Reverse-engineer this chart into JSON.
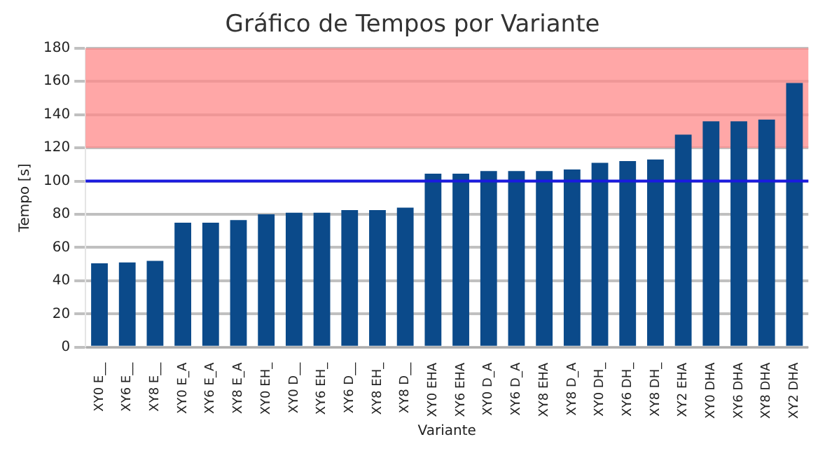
{
  "chart_data": {
    "type": "bar",
    "title": "Gráfico de Tempos por Variante",
    "xlabel": "Variante",
    "ylabel": "Tempo [s]",
    "categories": [
      "XY0 E__",
      "XY6 E__",
      "XY8 E__",
      "XY0 E_A",
      "XY6 E_A",
      "XY8 E_A",
      "XY0 EH_",
      "XY0 D__",
      "XY6 EH_",
      "XY6 D__",
      "XY8 EH_",
      "XY8 D__",
      "XY0 EHA",
      "XY6 EHA",
      "XY0 D_A",
      "XY6 D_A",
      "XY8 EHA",
      "XY8 D_A",
      "XY0 DH_",
      "XY6 DH_",
      "XY8 DH_",
      "XY2 EHA",
      "XY0 DHA",
      "XY6 DHA",
      "XY8 DHA",
      "XY2 DHA"
    ],
    "series": [
      {
        "color": "#0b4a8a",
        "values": [
          50.5,
          51,
          52,
          75,
          75,
          76.5,
          80,
          81,
          81,
          82.5,
          82.5,
          84,
          104.5,
          104.5,
          106,
          106,
          106,
          107,
          111,
          112,
          113,
          128,
          136,
          136,
          137,
          159
        ]
      }
    ],
    "ylim": [
      0,
      180
    ],
    "yticks": [
      0,
      20,
      40,
      60,
      80,
      100,
      120,
      140,
      160,
      180
    ],
    "grid": "y",
    "legend": false,
    "ref_lines": [
      {
        "axis": "y",
        "value": 100,
        "color": "#1a1adf"
      }
    ],
    "bands": [
      {
        "axis": "y",
        "from": 120,
        "to": 180,
        "color": "#ff8a8a"
      }
    ]
  }
}
